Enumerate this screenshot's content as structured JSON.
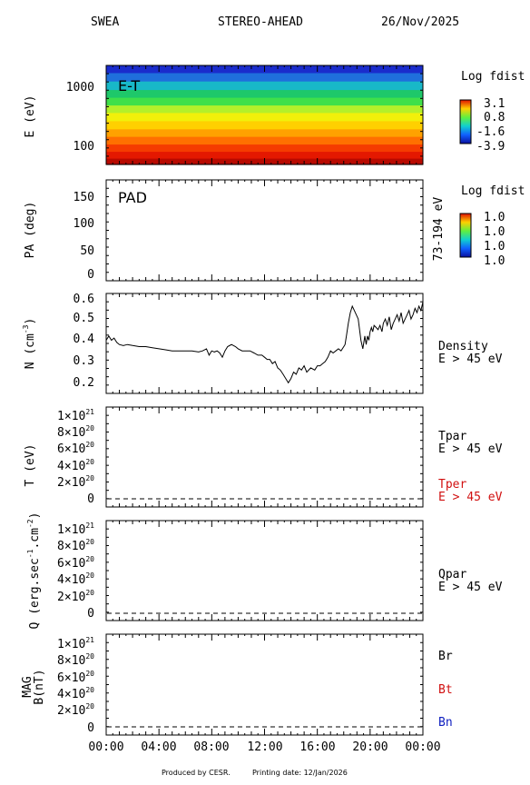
{
  "header": {
    "left": "SWEA",
    "center": "STEREO-AHEAD",
    "right": "26/Nov/2025"
  },
  "footer": {
    "produced": "Produced by CESR.",
    "printing": "Printing date: 12/Jan/2026"
  },
  "colors": {
    "red": "#d11010",
    "blue": "#1020c0",
    "frame": "#000000"
  },
  "x_axis": {
    "tick_labels": [
      "00:00",
      "04:00",
      "08:00",
      "12:00",
      "16:00",
      "20:00",
      "00:00"
    ]
  },
  "chart_data": [
    {
      "type": "heatmap",
      "panel": "energy-time",
      "title": "E-T",
      "ylabel": "E (eV)",
      "y_scale": "log",
      "y_tick_labels": [
        "1000",
        "100"
      ],
      "ylim": [
        50,
        2000
      ],
      "colorbar": {
        "title": "Log fdist",
        "labels": [
          "3.1",
          "0.8",
          "-1.6",
          "-3.9"
        ]
      },
      "bands": [
        {
          "e_low": 1500,
          "e_high": 2000,
          "color": "#1a2ccc"
        },
        {
          "e_low": 1100,
          "e_high": 1500,
          "color": "#1f6fdc"
        },
        {
          "e_low": 800,
          "e_high": 1100,
          "color": "#18b8c8"
        },
        {
          "e_low": 600,
          "e_high": 800,
          "color": "#1ec86a"
        },
        {
          "e_low": 450,
          "e_high": 600,
          "color": "#3fe04a"
        },
        {
          "e_low": 340,
          "e_high": 450,
          "color": "#b4f02a"
        },
        {
          "e_low": 250,
          "e_high": 340,
          "color": "#f2f00a"
        },
        {
          "e_low": 185,
          "e_high": 250,
          "color": "#ffd000"
        },
        {
          "e_low": 140,
          "e_high": 185,
          "color": "#ffa200"
        },
        {
          "e_low": 105,
          "e_high": 140,
          "color": "#ff7000"
        },
        {
          "e_low": 80,
          "e_high": 105,
          "color": "#f53b00"
        },
        {
          "e_low": 62,
          "e_high": 80,
          "color": "#e41800"
        },
        {
          "e_low": 50,
          "e_high": 62,
          "color": "#b80a00"
        }
      ]
    },
    {
      "type": "heatmap",
      "panel": "pitch-angle",
      "title": "PAD",
      "ylabel": "PA (deg)",
      "y_tick_labels": [
        "150",
        "100",
        "50",
        "0"
      ],
      "ylim": [
        -5,
        185
      ],
      "right_label": "73-194 eV",
      "colorbar": {
        "title": "Log fdist",
        "labels": [
          "1.0",
          "1.0",
          "1.0",
          "1.0"
        ]
      },
      "values": []
    },
    {
      "type": "line",
      "panel": "density",
      "ylabel": "N (cm^-3)",
      "y_tick_labels": [
        "0.6",
        "0.5",
        "0.4",
        "0.3",
        "0.2"
      ],
      "ylim": [
        0.15,
        0.62
      ],
      "xlim": [
        0,
        24
      ],
      "right_label": [
        "Density",
        "E > 45 eV"
      ],
      "series": [
        {
          "x": [
            0,
            0.2,
            0.4,
            0.6,
            0.8,
            1,
            1.3,
            1.6,
            2,
            2.5,
            3,
            3.5,
            4,
            4.5,
            5,
            5.5,
            6,
            6.5,
            7,
            7.3,
            7.6,
            7.8,
            8,
            8.2,
            8.4,
            8.6,
            8.8,
            9,
            9.2,
            9.5,
            9.8,
            10,
            10.3,
            10.6,
            10.9,
            11.2,
            11.5,
            11.8,
            12,
            12.2,
            12.4,
            12.6,
            12.8,
            13,
            13.2,
            13.4,
            13.6,
            13.8,
            14,
            14.2,
            14.4,
            14.6,
            14.8,
            15,
            15.2,
            15.5,
            15.8,
            16,
            16.2,
            16.4,
            16.6,
            16.8,
            17,
            17.2,
            17.4,
            17.6,
            17.8,
            18,
            18.1,
            18.2,
            18.35,
            18.5,
            18.65,
            18.8,
            18.95,
            19.1,
            19.2,
            19.3,
            19.45,
            19.6,
            19.7,
            19.8,
            19.9,
            20,
            20.1,
            20.2,
            20.3,
            20.45,
            20.6,
            20.75,
            20.9,
            21,
            21.15,
            21.3,
            21.45,
            21.6,
            21.75,
            21.9,
            22.05,
            22.2,
            22.35,
            22.5,
            22.65,
            22.8,
            22.95,
            23.1,
            23.25,
            23.4,
            23.55,
            23.7,
            23.85,
            24
          ],
          "y": [
            0.4,
            0.42,
            0.4,
            0.41,
            0.39,
            0.38,
            0.375,
            0.38,
            0.375,
            0.37,
            0.37,
            0.365,
            0.36,
            0.355,
            0.35,
            0.35,
            0.35,
            0.35,
            0.345,
            0.35,
            0.36,
            0.33,
            0.35,
            0.345,
            0.35,
            0.34,
            0.32,
            0.35,
            0.37,
            0.38,
            0.37,
            0.36,
            0.35,
            0.35,
            0.35,
            0.34,
            0.33,
            0.33,
            0.32,
            0.31,
            0.31,
            0.29,
            0.3,
            0.27,
            0.26,
            0.24,
            0.22,
            0.2,
            0.22,
            0.25,
            0.24,
            0.27,
            0.26,
            0.28,
            0.25,
            0.27,
            0.26,
            0.28,
            0.28,
            0.29,
            0.3,
            0.32,
            0.35,
            0.34,
            0.35,
            0.36,
            0.35,
            0.37,
            0.38,
            0.42,
            0.48,
            0.53,
            0.56,
            0.54,
            0.52,
            0.5,
            0.45,
            0.4,
            0.36,
            0.42,
            0.38,
            0.42,
            0.4,
            0.44,
            0.46,
            0.44,
            0.47,
            0.46,
            0.45,
            0.47,
            0.44,
            0.48,
            0.5,
            0.47,
            0.51,
            0.45,
            0.48,
            0.5,
            0.52,
            0.49,
            0.53,
            0.48,
            0.5,
            0.52,
            0.54,
            0.5,
            0.52,
            0.55,
            0.53,
            0.56,
            0.54,
            0.58
          ]
        }
      ]
    },
    {
      "type": "line",
      "panel": "temperature",
      "ylabel": "T (eV)",
      "y_tick_labels": [
        "1×10^21",
        "8×10^20",
        "6×10^20",
        "4×10^20",
        "2×10^20",
        "0"
      ],
      "ylim": [
        -1e+20,
        1.1e+21
      ],
      "series": [
        {
          "name": "Tpar",
          "unit_label": "E > 45 eV",
          "x": [
            0,
            24
          ],
          "y": [
            0,
            0
          ]
        },
        {
          "name": "Tper",
          "unit_label": "E > 45 eV",
          "x": [
            0,
            24
          ],
          "y": [
            0,
            0
          ]
        }
      ]
    },
    {
      "type": "line",
      "panel": "heat-flux",
      "ylabel": "Q (erg.sec^-1.cm^-2)",
      "y_tick_labels": [
        "1×10^21",
        "8×10^20",
        "6×10^20",
        "4×10^20",
        "2×10^20",
        "0"
      ],
      "ylim": [
        -1e+20,
        1.1e+21
      ],
      "series": [
        {
          "name": "Qpar",
          "unit_label": "E > 45 eV",
          "x": [
            0,
            24
          ],
          "y": [
            0,
            0
          ]
        }
      ]
    },
    {
      "type": "line",
      "panel": "magnetic",
      "ylabel": [
        "MAG",
        "B(nT)"
      ],
      "y_tick_labels": [
        "1×10^21",
        "8×10^20",
        "6×10^20",
        "4×10^20",
        "2×10^20",
        "0"
      ],
      "ylim": [
        -1e+20,
        1.1e+21
      ],
      "series": [
        {
          "name": "Br",
          "x": [
            0,
            24
          ],
          "y": [
            0,
            0
          ]
        },
        {
          "name": "Bt",
          "x": [
            0,
            24
          ],
          "y": [
            0,
            0
          ]
        },
        {
          "name": "Bn",
          "x": [
            0,
            24
          ],
          "y": [
            0,
            0
          ]
        }
      ]
    }
  ]
}
